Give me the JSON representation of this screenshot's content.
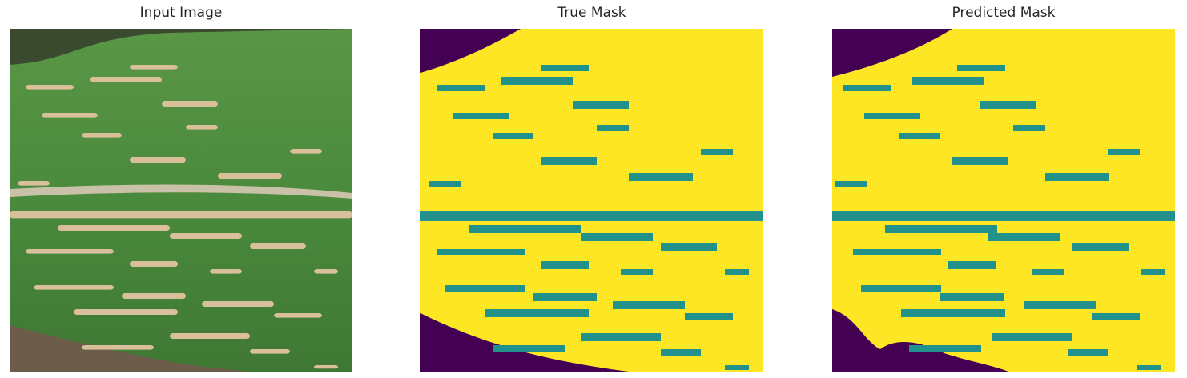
{
  "panels": [
    {
      "title": "Input Image",
      "kind": "photo",
      "content": "corn leaf with lesions"
    },
    {
      "title": "True Mask",
      "kind": "mask"
    },
    {
      "title": "Predicted Mask",
      "kind": "mask"
    }
  ],
  "colors": {
    "background_class": "#440154",
    "leaf_class": "#fde725",
    "lesion_class": "#21918c",
    "leaf_green": "#4e8a3e",
    "leaf_dark": "#3a6b30",
    "lesion_tan": "#d9bf9a",
    "soil": "#5a4a3a"
  }
}
